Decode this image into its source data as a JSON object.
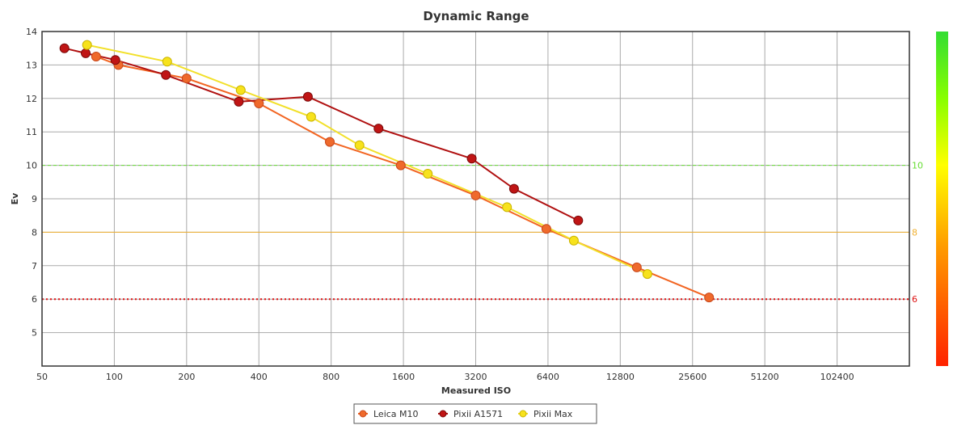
{
  "chart_data": {
    "type": "line",
    "title": "Dynamic Range",
    "xlabel": "Measured ISO",
    "ylabel": "Ev",
    "x_scale": "log2",
    "xlim": [
      50,
      204800
    ],
    "ylim": [
      4,
      14
    ],
    "x_ticks": [
      50,
      100,
      200,
      400,
      800,
      1600,
      3200,
      6400,
      12800,
      25600,
      51200,
      102400
    ],
    "x_tick_labels": [
      "50",
      "100",
      "200",
      "400",
      "800",
      "1600",
      "3200",
      "6400",
      "12800",
      "25600",
      "51200",
      "102400"
    ],
    "y_ticks": [
      5,
      6,
      7,
      8,
      9,
      10,
      11,
      12,
      13,
      14
    ],
    "y_tick_labels": [
      "5",
      "6",
      "7",
      "8",
      "9",
      "10",
      "11",
      "12",
      "13",
      "14"
    ],
    "grid": true,
    "reference_lines": [
      {
        "label": "10",
        "value": 10,
        "color": "#66dd33",
        "style": "dashed"
      },
      {
        "label": "8",
        "value": 8,
        "color": "#f0b030",
        "style": "solid"
      },
      {
        "label": "6",
        "value": 6,
        "color": "#dd1111",
        "style": "dotted"
      }
    ],
    "legend_position": "bottom-center",
    "series": [
      {
        "name": "Leica M10",
        "color": "#f26522",
        "marker_fill": "#ef6a2c",
        "marker_stroke": "#c8471a",
        "x": [
          84,
          104,
          200,
          400,
          790,
          1560,
          3200,
          6300,
          15000,
          30000
        ],
        "y": [
          13.25,
          13.0,
          12.6,
          11.85,
          10.7,
          10.0,
          9.1,
          8.1,
          6.95,
          6.05
        ]
      },
      {
        "name": "Pixii A1571",
        "color": "#b01010",
        "marker_fill": "#c01515",
        "marker_stroke": "#7a0a0a",
        "x": [
          62,
          76,
          101,
          164,
          330,
          640,
          1260,
          3080,
          4620,
          8550
        ],
        "y": [
          13.5,
          13.35,
          13.15,
          12.7,
          11.9,
          12.05,
          11.1,
          10.2,
          9.3,
          8.35
        ]
      },
      {
        "name": "Pixii Max",
        "color": "#f2e02a",
        "marker_fill": "#f7e21c",
        "marker_stroke": "#c9b400",
        "x": [
          77,
          166,
          336,
          660,
          1050,
          2020,
          4320,
          8200,
          16600
        ],
        "y": [
          13.6,
          13.1,
          12.25,
          11.45,
          10.6,
          9.75,
          8.75,
          7.75,
          6.75
        ]
      }
    ],
    "colorbar": {
      "stops": [
        "#ff2200",
        "#ff9900",
        "#ffff00",
        "#88ff00",
        "#33dd33"
      ]
    }
  }
}
